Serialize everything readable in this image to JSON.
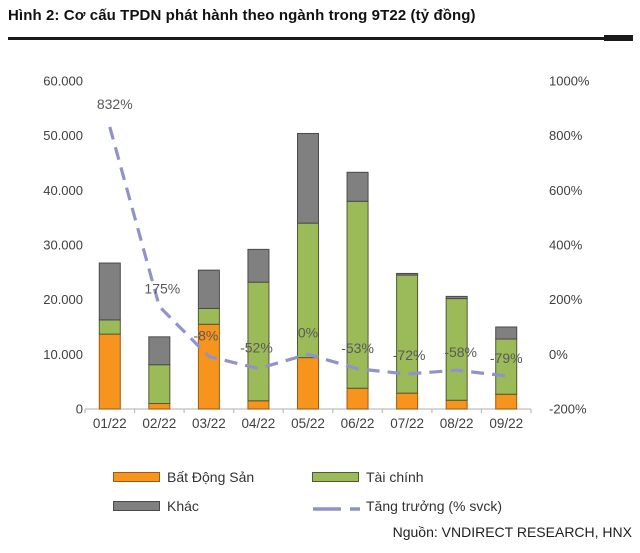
{
  "title": "Hình 2: Cơ cấu TPDN phát hành theo ngành trong 9T22 (tỷ đồng)",
  "source": "Nguồn: VNDIRECT RESEARCH, HNX",
  "legend": {
    "items": [
      {
        "label": "Bất Động Sản",
        "type": "swatch",
        "color": "#F7941E",
        "border": "#9C5A12"
      },
      {
        "label": "Tài chính",
        "type": "swatch",
        "color": "#9BBB59",
        "border": "#4E5B31"
      },
      {
        "label": "Khác",
        "type": "swatch",
        "color": "#808080",
        "border": "#4A4A4A"
      },
      {
        "label": "Tăng trưởng (% svck)",
        "type": "line",
        "color": "#9193C8"
      }
    ]
  },
  "chart_data": {
    "type": "bar",
    "subtype": "stacked-bars-with-growth-line",
    "title": "Cơ cấu TPDN phát hành theo ngành trong 9T22 (tỷ đồng)",
    "categories": [
      "01/22",
      "02/22",
      "03/22",
      "04/22",
      "05/22",
      "06/22",
      "07/22",
      "08/22",
      "09/22"
    ],
    "series": [
      {
        "name": "Bất Động Sản",
        "type": "bar",
        "color": "#F7941E",
        "border": "#9C5A12",
        "values": [
          13700,
          1000,
          15500,
          1500,
          9400,
          3800,
          2900,
          1600,
          2700
        ]
      },
      {
        "name": "Tài chính",
        "type": "bar",
        "color": "#9BBB59",
        "border": "#4E5B31",
        "values": [
          2600,
          7100,
          2900,
          21700,
          24600,
          34200,
          21600,
          18600,
          10100
        ]
      },
      {
        "name": "Khác",
        "type": "bar",
        "color": "#808080",
        "border": "#4A4A4A",
        "values": [
          10400,
          5100,
          7000,
          6000,
          16400,
          5300,
          300,
          400,
          2200
        ]
      }
    ],
    "line_series": {
      "name": "Tăng trưởng (% svck)",
      "type": "line",
      "color": "#9193C8",
      "values": [
        832,
        175,
        -8,
        -52,
        0,
        -53,
        -72,
        -58,
        -79
      ],
      "labels": [
        "832%",
        "175%",
        "-8%",
        "-52%",
        "0%",
        "-53%",
        "-72%",
        "-58%",
        "-79%"
      ]
    },
    "left_axis": {
      "min": 0,
      "max": 60000,
      "ticks": [
        "60.000",
        "50.000",
        "40.000",
        "30.000",
        "20.000",
        "10.000",
        "0"
      ]
    },
    "right_axis": {
      "min": -200,
      "max": 1000,
      "ticks": [
        "1000%",
        "800%",
        "600%",
        "400%",
        "200%",
        "0%",
        "-200%"
      ]
    },
    "grid": false,
    "legend_position": "bottom",
    "stacked": true
  }
}
